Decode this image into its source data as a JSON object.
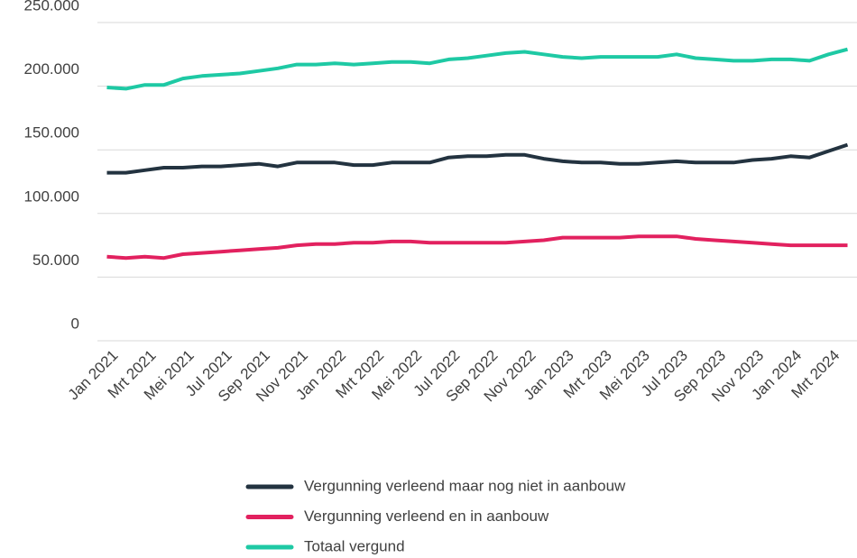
{
  "chart_data": {
    "type": "line",
    "categories": [
      "Jan 2021",
      null,
      "Mrt 2021",
      null,
      "Mei 2021",
      null,
      "Jul 2021",
      null,
      "Sep 2021",
      null,
      "Nov 2021",
      null,
      "Jan 2022",
      null,
      "Mrt 2022",
      null,
      "Mei 2022",
      null,
      "Jul 2022",
      null,
      "Sep 2022",
      null,
      "Nov 2022",
      null,
      "Jan 2023",
      null,
      "Mrt 2023",
      null,
      "Mei 2023",
      null,
      "Jul 2023",
      null,
      "Sep 2023",
      null,
      "Nov 2023",
      null,
      "Jan 2024",
      null,
      "Mrt 2024",
      null
    ],
    "series": [
      {
        "name": "Vergunning verleend maar nog niet in aanbouw",
        "color": "#233340",
        "values": [
          132000,
          132000,
          134000,
          136000,
          136000,
          137000,
          137000,
          138000,
          139000,
          137000,
          140000,
          140000,
          140000,
          138000,
          138000,
          140000,
          140000,
          140000,
          144000,
          145000,
          145000,
          146000,
          146000,
          143000,
          141000,
          140000,
          140000,
          139000,
          139000,
          140000,
          141000,
          140000,
          140000,
          140000,
          142000,
          143000,
          145000,
          144000,
          149000,
          154000
        ]
      },
      {
        "name": "Vergunning verleend en in aanbouw",
        "color": "#e2215f",
        "values": [
          66000,
          65000,
          66000,
          65000,
          68000,
          69000,
          70000,
          71000,
          72000,
          73000,
          75000,
          76000,
          76000,
          77000,
          77000,
          78000,
          78000,
          77000,
          77000,
          77000,
          77000,
          77000,
          78000,
          79000,
          81000,
          81000,
          81000,
          81000,
          82000,
          82000,
          82000,
          80000,
          79000,
          78000,
          77000,
          76000,
          75000,
          75000,
          75000,
          75000
        ]
      },
      {
        "name": "Totaal vergund",
        "color": "#1ec9a4",
        "values": [
          199000,
          198000,
          201000,
          201000,
          206000,
          208000,
          209000,
          210000,
          212000,
          214000,
          217000,
          217000,
          218000,
          217000,
          218000,
          219000,
          219000,
          218000,
          221000,
          222000,
          224000,
          226000,
          227000,
          225000,
          223000,
          222000,
          223000,
          223000,
          223000,
          223000,
          225000,
          222000,
          221000,
          220000,
          220000,
          221000,
          221000,
          220000,
          225000,
          229000
        ]
      }
    ],
    "ylim": [
      0,
      250000
    ],
    "yticks": [
      0,
      {
        "value": 50000,
        "label": "50.000"
      },
      {
        "value": 100000,
        "label": "100.000"
      },
      {
        "value": 150000,
        "label": "150.000"
      },
      {
        "value": 200000,
        "label": "200.000"
      },
      {
        "value": 250000,
        "label": "250.000"
      }
    ],
    "grid": true
  }
}
